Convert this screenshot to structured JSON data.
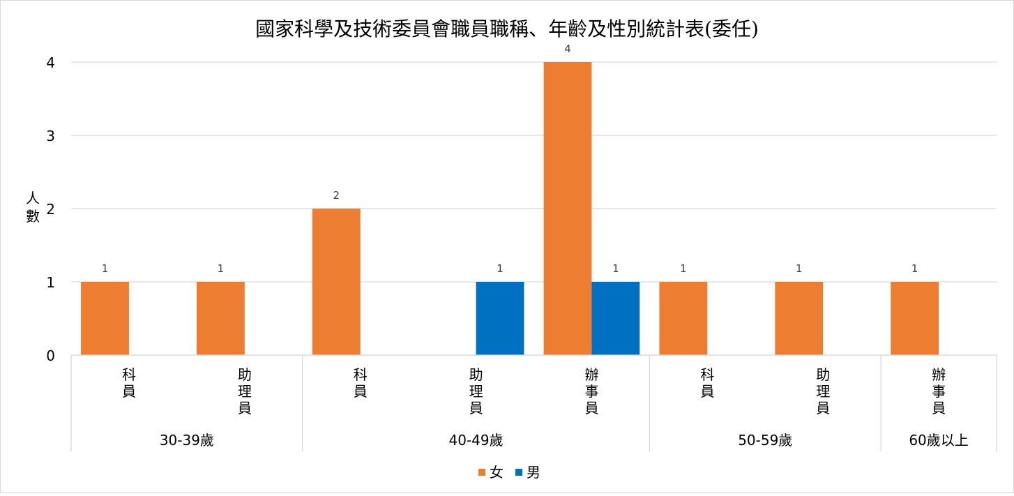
{
  "chart_data": {
    "type": "bar",
    "title": "國家科學及技術委員會職員職稱、年齡及性別統計表(委任)",
    "ylabel": "人數",
    "xlabel": "",
    "ylim": [
      0,
      4
    ],
    "yticks": [
      0,
      1,
      2,
      3,
      4
    ],
    "grid": true,
    "legend_position": "bottom",
    "groups": [
      {
        "label": "30-39歲",
        "categories": [
          "科員",
          "助理員"
        ]
      },
      {
        "label": "40-49歲",
        "categories": [
          "科員",
          "助理員",
          "辦事員"
        ]
      },
      {
        "label": "50-59歲",
        "categories": [
          "科員",
          "助理員"
        ]
      },
      {
        "label": "60歲以上",
        "categories": [
          "辦事員"
        ]
      }
    ],
    "categories": [
      "30-39歲 科員",
      "30-39歲 助理員",
      "40-49歲 科員",
      "40-49歲 助理員",
      "40-49歲 辦事員",
      "50-59歲 科員",
      "50-59歲 助理員",
      "60歲以上 辦事員"
    ],
    "series": [
      {
        "name": "女",
        "color": "#ED7D31",
        "values": [
          1,
          1,
          2,
          null,
          4,
          1,
          1,
          1
        ]
      },
      {
        "name": "男",
        "color": "#0070C0",
        "values": [
          null,
          null,
          null,
          1,
          1,
          null,
          null,
          null
        ]
      }
    ]
  }
}
